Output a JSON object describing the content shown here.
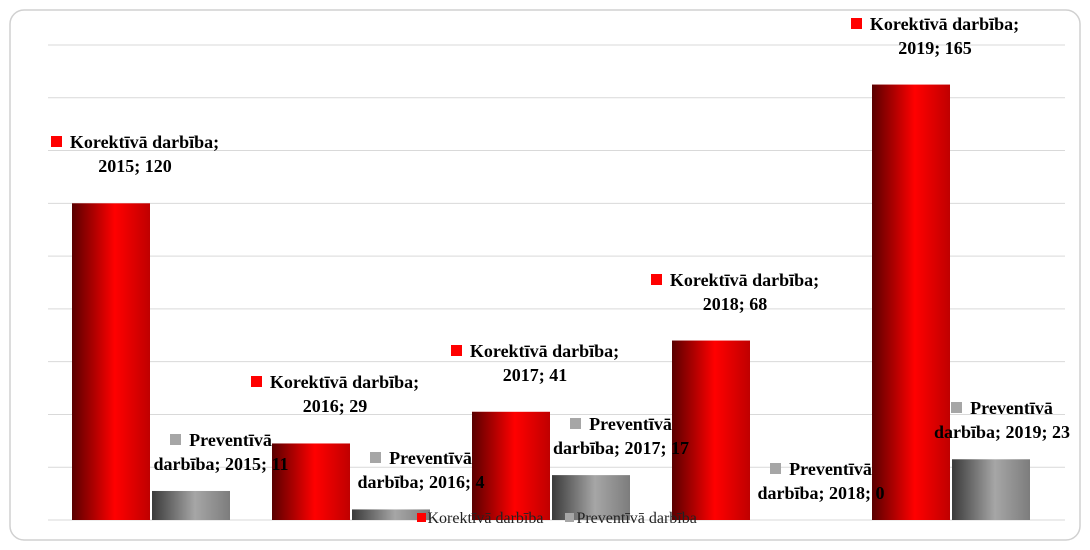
{
  "chart_data": {
    "type": "bar",
    "series": [
      {
        "name": "Korektīvā darbība",
        "color": "#ff0000",
        "values": [
          120,
          29,
          41,
          68,
          165
        ],
        "value_labels": [
          "Korektīvā darbība; 2015; 120",
          "Korektīvā darbība; 2016; 29",
          "Korektīvā darbība; 2017; 41",
          "Korektīvā darbība; 2018; 68",
          "Korektīvā darbība; 2019; 165"
        ]
      },
      {
        "name": "Preventīvā darbība",
        "color": "#a6a6a6",
        "values": [
          11,
          4,
          17,
          0,
          23
        ],
        "value_labels": [
          "Preventīvā darbība; 2015; 11",
          "Preventīvā darbība; 2016; 4",
          "Preventīvā darbība; 2017; 17",
          "Preventīvā darbība; 2018; 0",
          "Preventīvā darbība; 2019; 23"
        ]
      }
    ],
    "ylim": [
      0,
      180
    ],
    "yticks": [
      0,
      20,
      40,
      60,
      80,
      100,
      120,
      140,
      160,
      180
    ],
    "grid": true,
    "legend": "bottom"
  }
}
